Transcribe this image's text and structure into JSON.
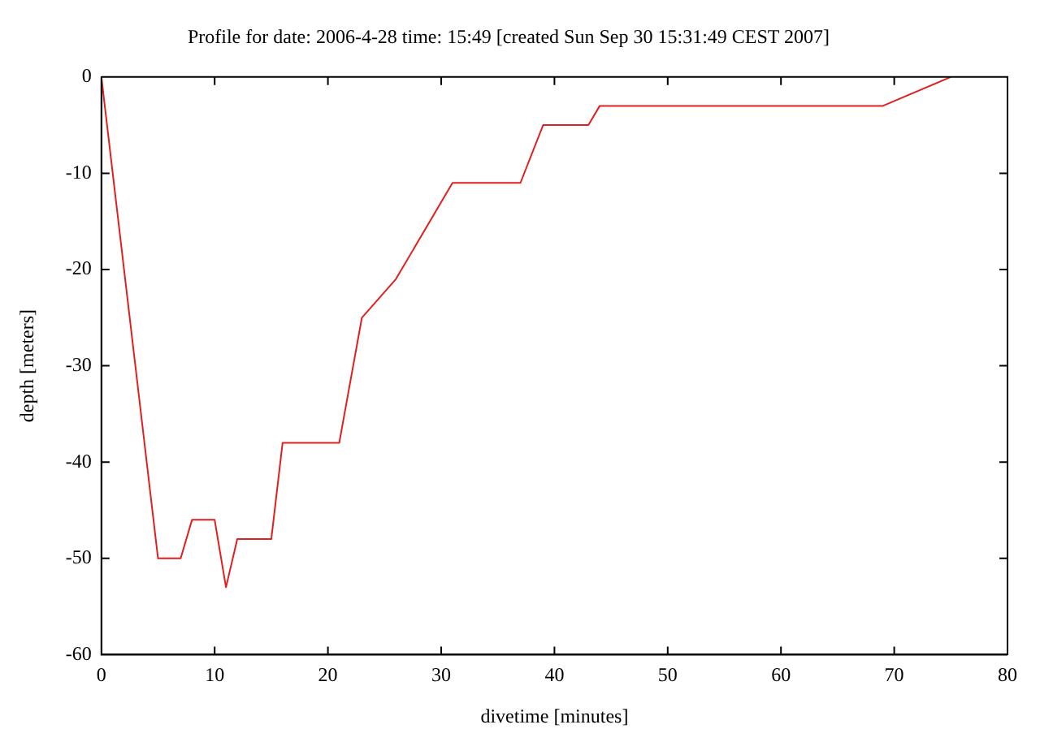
{
  "chart_data": {
    "type": "line",
    "title": "Profile for date: 2006-4-28 time: 15:49 [created Sun Sep 30 15:31:49 CEST 2007]",
    "xlabel": "divetime [minutes]",
    "ylabel": "depth [meters]",
    "x": [
      0,
      5,
      7,
      8,
      10,
      11,
      12,
      15,
      16,
      21,
      23,
      26,
      31,
      37,
      39,
      43,
      44,
      69,
      75
    ],
    "values": [
      0,
      -50,
      -50,
      -46,
      -46,
      -53,
      -48,
      -48,
      -38,
      -38,
      -25,
      -21,
      -11,
      -11,
      -5,
      -5,
      -3,
      -3,
      0
    ],
    "color": "#e02020",
    "xlim": [
      0,
      80
    ],
    "ylim": [
      -60,
      0
    ],
    "xticks": [
      0,
      10,
      20,
      30,
      40,
      50,
      60,
      70,
      80
    ],
    "yticks": [
      -60,
      -50,
      -40,
      -30,
      -20,
      -10,
      0
    ],
    "marker": "none",
    "line_style": "solid"
  }
}
